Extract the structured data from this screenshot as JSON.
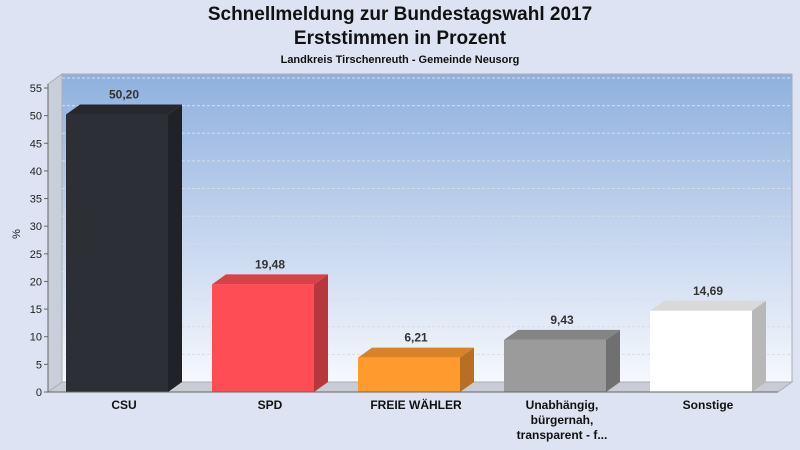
{
  "chart_data": {
    "type": "bar",
    "title": "Schnellmeldung zur Bundestagswahl 2017",
    "subtitle": "Erststimmen in Prozent",
    "caption": "Landkreis Tirschenreuth - Gemeinde Neusorg",
    "ylabel": "%",
    "ylim": [
      0,
      55
    ],
    "yticks": [
      "0",
      "5",
      "10",
      "15",
      "20",
      "25",
      "30",
      "35",
      "40",
      "45",
      "50",
      "55"
    ],
    "grid": true,
    "categories": [
      [
        "CSU"
      ],
      [
        "SPD"
      ],
      [
        "FREIE WÄHLER"
      ],
      [
        "Unabhängig,",
        "bürgernah,",
        "transparent - f..."
      ],
      [
        "Sonstige"
      ]
    ],
    "values": [
      50.2,
      19.48,
      6.21,
      9.43,
      14.69
    ],
    "value_labels": [
      "50,20",
      "19,48",
      "6,21",
      "9,43",
      "14,69"
    ],
    "colors": [
      "#2d2f36",
      "#ff4d55",
      "#ff9a2e",
      "#9b9b9b",
      "#ffffff"
    ]
  }
}
